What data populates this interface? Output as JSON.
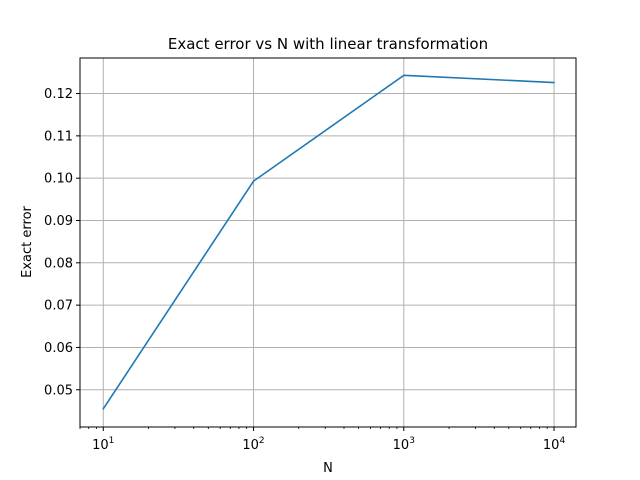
{
  "chart_data": {
    "type": "line",
    "title": "Exact error vs N with linear transformation",
    "xlabel": "N",
    "ylabel": "Exact error",
    "xscale": "log",
    "xlim": [
      7,
      14000
    ],
    "ylim": [
      0.0412,
      0.1284
    ],
    "grid": true,
    "x_ticks": [
      {
        "value": 10,
        "base": "10",
        "exponent": "1"
      },
      {
        "value": 100,
        "base": "10",
        "exponent": "2"
      },
      {
        "value": 1000,
        "base": "10",
        "exponent": "3"
      },
      {
        "value": 10000,
        "base": "10",
        "exponent": "4"
      }
    ],
    "y_ticks": [
      {
        "value": 0.05,
        "label": "0.05"
      },
      {
        "value": 0.06,
        "label": "0.06"
      },
      {
        "value": 0.07,
        "label": "0.07"
      },
      {
        "value": 0.08,
        "label": "0.08"
      },
      {
        "value": 0.09,
        "label": "0.09"
      },
      {
        "value": 0.1,
        "label": "0.10"
      },
      {
        "value": 0.11,
        "label": "0.11"
      },
      {
        "value": 0.12,
        "label": "0.12"
      }
    ],
    "series": [
      {
        "color": "#1f77b4",
        "x": [
          10,
          100,
          1000,
          10000
        ],
        "y": [
          0.0455,
          0.0993,
          0.1243,
          0.1226
        ]
      }
    ]
  }
}
